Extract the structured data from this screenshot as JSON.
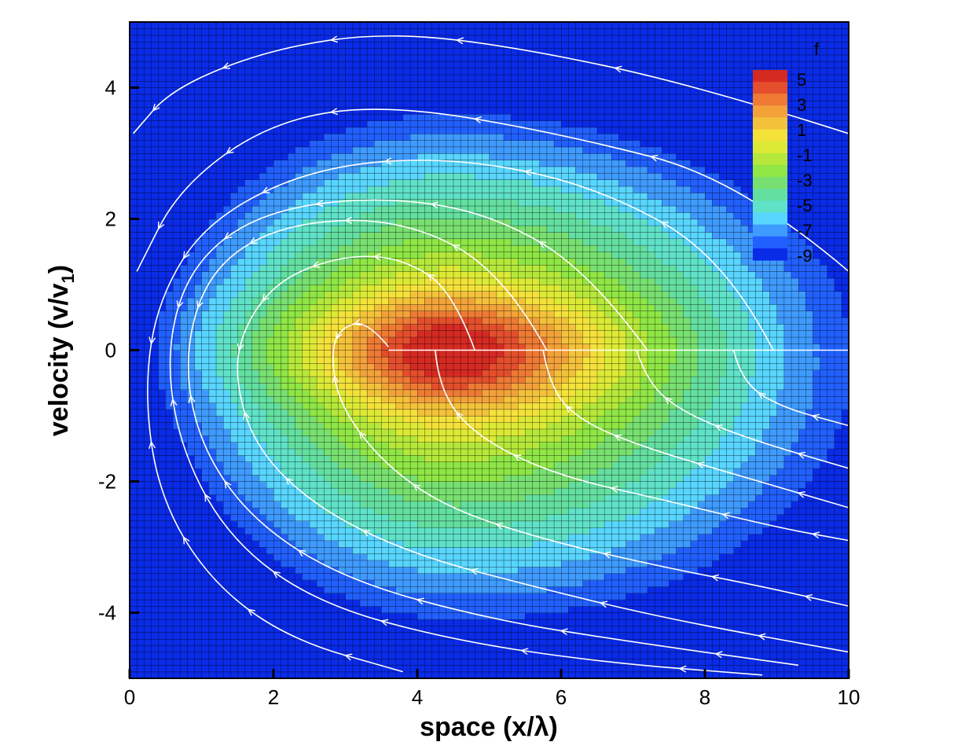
{
  "chart_data": {
    "type": "heatmap",
    "title": "",
    "xlabel": "space (x/λ)",
    "ylabel_main": "velocity (v/v",
    "ylabel_sub": "1",
    "ylabel_close": ")",
    "xlim": [
      0,
      10
    ],
    "ylim": [
      -5,
      5
    ],
    "xticks": [
      0,
      2,
      4,
      6,
      8,
      10
    ],
    "yticks": [
      -4,
      -2,
      0,
      2,
      4
    ],
    "xtick_labels": [
      "0",
      "2",
      "4",
      "6",
      "8",
      "10"
    ],
    "ytick_labels": [
      "-4",
      "-2",
      "0",
      "2",
      "4"
    ],
    "grid": true,
    "grid_color": "#000000",
    "background_color": "#0a2be8",
    "colorbar": {
      "title": "f",
      "range": [
        -10,
        6
      ],
      "levels": [
        5,
        3,
        1,
        -1,
        -3,
        -5,
        -7,
        -9
      ],
      "level_labels": [
        "5",
        "3",
        "1",
        "-1",
        "-3",
        "-5",
        "-7",
        "-9"
      ],
      "placement": "top-right",
      "colors": [
        "#0a2be8",
        "#2160ff",
        "#3f9bff",
        "#58d6ff",
        "#5fe2c8",
        "#63dfa0",
        "#78e070",
        "#8fe645",
        "#b5e83a",
        "#ddea35",
        "#f4e23a",
        "#f4c23a",
        "#f3a23a",
        "#ee7a34",
        "#e44e2c",
        "#d52a22"
      ]
    },
    "field": {
      "description_values": "f field peaks (~5) near x≈4.5, v≈0 and falls to ≈-9 outside an ellipse spanning x 0–10, v -4 to 4",
      "peak": {
        "x": 4.5,
        "v": 0,
        "f": 5.5
      },
      "background_f": -9.5
    },
    "streamlines": [
      {
        "name": "",
        "points": [
          [
            3.6,
            0.05
          ],
          [
            3.3,
            0.45
          ],
          [
            2.95,
            0.35
          ],
          [
            2.8,
            0
          ],
          [
            2.9,
            -0.8
          ],
          [
            3.5,
            -1.7
          ],
          [
            4.4,
            -2.4
          ],
          [
            5.8,
            -2.9
          ],
          [
            7.4,
            -3.3
          ],
          [
            8.8,
            -3.6
          ],
          [
            10,
            -3.9
          ]
        ]
      },
      {
        "name": "",
        "points": [
          [
            4.8,
            0
          ],
          [
            4.5,
            0.9
          ],
          [
            3.8,
            1.4
          ],
          [
            3.0,
            1.45
          ],
          [
            2.1,
            1.1
          ],
          [
            1.6,
            0.4
          ],
          [
            1.45,
            -0.4
          ],
          [
            1.75,
            -1.5
          ],
          [
            2.6,
            -2.4
          ],
          [
            3.9,
            -3.1
          ],
          [
            5.6,
            -3.6
          ],
          [
            7.5,
            -4.1
          ],
          [
            10,
            -4.6
          ]
        ]
      },
      {
        "name": "",
        "points": [
          [
            5.8,
            0
          ],
          [
            5.2,
            1.2
          ],
          [
            3.8,
            2.0
          ],
          [
            2.2,
            1.95
          ],
          [
            1.15,
            1.3
          ],
          [
            0.75,
            0
          ],
          [
            0.95,
            -1.4
          ],
          [
            1.7,
            -2.6
          ],
          [
            3.0,
            -3.5
          ],
          [
            5.0,
            -4.1
          ],
          [
            7.0,
            -4.45
          ],
          [
            9.3,
            -4.8
          ]
        ]
      },
      {
        "name": "",
        "points": [
          [
            7.2,
            0
          ],
          [
            6.4,
            1.2
          ],
          [
            5.0,
            2.1
          ],
          [
            3.4,
            2.35
          ],
          [
            1.8,
            2.1
          ],
          [
            0.85,
            1.3
          ],
          [
            0.5,
            0
          ],
          [
            0.7,
            -1.5
          ],
          [
            1.4,
            -2.9
          ],
          [
            2.6,
            -3.85
          ],
          [
            4.4,
            -4.4
          ],
          [
            6.5,
            -4.75
          ],
          [
            8.8,
            -4.95
          ]
        ]
      },
      {
        "name": "",
        "points": [
          [
            8.95,
            0
          ],
          [
            8.3,
            1.4
          ],
          [
            6.5,
            2.5
          ],
          [
            4.5,
            2.95
          ],
          [
            2.6,
            2.8
          ],
          [
            1.1,
            2.0
          ],
          [
            0.4,
            0.8
          ],
          [
            0.2,
            -0.6
          ],
          [
            0.4,
            -2.2
          ],
          [
            1.1,
            -3.5
          ],
          [
            2.2,
            -4.4
          ],
          [
            3.8,
            -4.9
          ]
        ]
      },
      {
        "name": "",
        "points": [
          [
            10,
            1.2
          ],
          [
            8.5,
            2.6
          ],
          [
            6.0,
            3.3
          ],
          [
            3.6,
            3.75
          ],
          [
            2.0,
            3.5
          ],
          [
            0.7,
            2.5
          ],
          [
            0.1,
            1.2
          ]
        ]
      },
      {
        "name": "",
        "points": [
          [
            10,
            3.3
          ],
          [
            8.0,
            4.0
          ],
          [
            5.5,
            4.6
          ],
          [
            3.6,
            4.85
          ],
          [
            2.0,
            4.6
          ],
          [
            0.6,
            4.0
          ],
          [
            0.05,
            3.3
          ]
        ]
      },
      {
        "name": "",
        "points": [
          [
            4.25,
            0
          ],
          [
            4.3,
            -0.6
          ],
          [
            4.8,
            -1.3
          ],
          [
            5.9,
            -1.9
          ],
          [
            7.5,
            -2.3
          ],
          [
            9.0,
            -2.7
          ],
          [
            10,
            -2.9
          ]
        ]
      },
      {
        "name": "",
        "points": [
          [
            5.75,
            0
          ],
          [
            5.85,
            -0.6
          ],
          [
            6.3,
            -1.1
          ],
          [
            7.2,
            -1.5
          ],
          [
            8.6,
            -1.95
          ],
          [
            10,
            -2.4
          ]
        ]
      },
      {
        "name": "",
        "points": [
          [
            7.05,
            0
          ],
          [
            7.2,
            -0.5
          ],
          [
            7.7,
            -0.95
          ],
          [
            8.6,
            -1.35
          ],
          [
            10,
            -1.8
          ]
        ]
      },
      {
        "name": "",
        "points": [
          [
            8.4,
            0
          ],
          [
            8.5,
            -0.45
          ],
          [
            9.0,
            -0.85
          ],
          [
            10,
            -1.15
          ]
        ]
      },
      {
        "name": "",
        "points": [
          [
            3.6,
            0
          ],
          [
            10,
            0
          ]
        ]
      }
    ]
  }
}
